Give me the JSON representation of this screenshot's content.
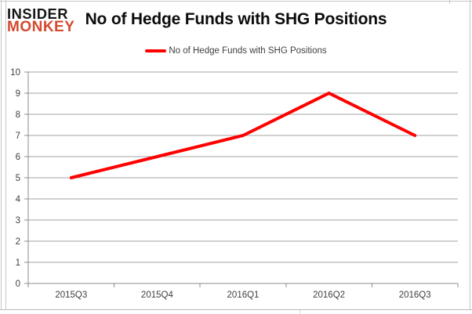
{
  "logo": {
    "line1": "INSIDER",
    "line2": "MONKEY",
    "color": "#d5492f"
  },
  "header": {
    "title": "No of Hedge Funds with SHG Positions"
  },
  "legend": {
    "label": "No of Hedge Funds with SHG Positions",
    "color": "#ff0000"
  },
  "chart_data": {
    "type": "line",
    "title": "No of Hedge Funds with SHG Positions",
    "categories": [
      "2015Q3",
      "2015Q4",
      "2016Q1",
      "2016Q2",
      "2016Q3"
    ],
    "series": [
      {
        "name": "No of Hedge Funds with SHG Positions",
        "values": [
          5,
          6,
          7,
          9,
          7
        ],
        "color": "#ff0000"
      }
    ],
    "xlabel": "",
    "ylabel": "",
    "ylim": [
      0,
      10
    ],
    "ytick_step": 1,
    "grid": true,
    "legend_position": "top"
  },
  "appearance": {
    "grid_color": "#a3a3a3",
    "axis_color": "#8c8c8c",
    "tick_label_color": "#3f3f3f",
    "background": "#ffffff"
  }
}
